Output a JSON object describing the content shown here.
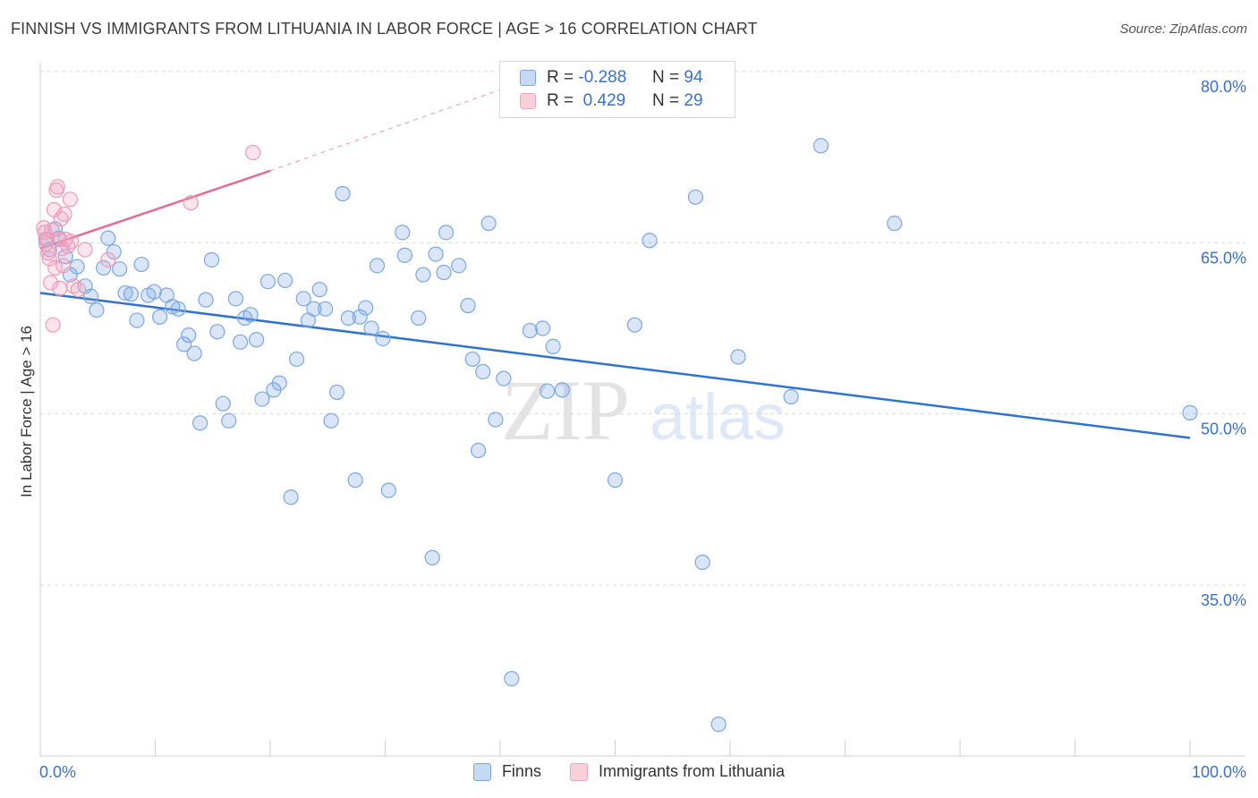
{
  "title": "FINNISH VS IMMIGRANTS FROM LITHUANIA IN LABOR FORCE | AGE > 16 CORRELATION CHART",
  "source": "Source: ZipAtlas.com",
  "watermark": {
    "part1": "ZIP",
    "part2": "atlas"
  },
  "legend": {
    "finns": {
      "r_label": "R =",
      "r_value": "-0.288",
      "n_label": "N =",
      "n_value": "94"
    },
    "lithuania": {
      "r_label": "R =",
      "r_value": "0.429",
      "n_label": "N =",
      "n_value": "29"
    }
  },
  "colors": {
    "finns": "#7aa7e3",
    "finns_line": "#2f72d0",
    "lithuania": "#f0a3bd",
    "lithuania_line": "#e56b95",
    "axis_text": "#3a72c8"
  },
  "chart_data": {
    "type": "scatter",
    "title": "FINNISH VS IMMIGRANTS FROM LITHUANIA IN LABOR FORCE | AGE > 16 CORRELATION CHART",
    "xlabel": "",
    "ylabel": "In Labor Force | Age > 16",
    "xlim": [
      0,
      100
    ],
    "ylim": [
      20,
      84
    ],
    "x_tick_labels": [
      "0.0%",
      "100.0%"
    ],
    "y_ticks": [
      35,
      50,
      65,
      80
    ],
    "y_tick_labels": [
      "35.0%",
      "50.0%",
      "65.0%",
      "80.0%"
    ],
    "grid": "horizontal-dashed",
    "legend_position": "top-center",
    "series": [
      {
        "name": "Finns",
        "color": "#7aa7e3",
        "trend": {
          "x": [
            0,
            100
          ],
          "y": [
            60.6,
            47.9
          ]
        },
        "points": [
          [
            0.5,
            65.3
          ],
          [
            0.8,
            64.4
          ],
          [
            1.3,
            66.2
          ],
          [
            1.6,
            65.4
          ],
          [
            2.2,
            63.8
          ],
          [
            2.6,
            62.2
          ],
          [
            3.2,
            62.9
          ],
          [
            3.9,
            61.2
          ],
          [
            4.4,
            60.3
          ],
          [
            4.9,
            59.1
          ],
          [
            5.5,
            62.8
          ],
          [
            5.9,
            65.4
          ],
          [
            6.4,
            64.2
          ],
          [
            6.9,
            62.7
          ],
          [
            7.4,
            60.6
          ],
          [
            7.9,
            60.5
          ],
          [
            8.4,
            58.2
          ],
          [
            8.8,
            63.1
          ],
          [
            9.4,
            60.4
          ],
          [
            9.9,
            60.7
          ],
          [
            10.4,
            58.5
          ],
          [
            11.0,
            60.4
          ],
          [
            11.5,
            59.4
          ],
          [
            12.0,
            59.2
          ],
          [
            12.5,
            56.1
          ],
          [
            12.9,
            56.9
          ],
          [
            13.4,
            55.3
          ],
          [
            13.9,
            49.2
          ],
          [
            14.4,
            60.0
          ],
          [
            14.9,
            63.5
          ],
          [
            15.4,
            57.2
          ],
          [
            15.9,
            50.9
          ],
          [
            16.4,
            49.4
          ],
          [
            17.0,
            60.1
          ],
          [
            17.4,
            56.3
          ],
          [
            17.8,
            58.4
          ],
          [
            18.3,
            58.7
          ],
          [
            18.8,
            56.5
          ],
          [
            19.3,
            51.3
          ],
          [
            19.8,
            61.6
          ],
          [
            20.3,
            52.1
          ],
          [
            20.8,
            52.7
          ],
          [
            21.3,
            61.7
          ],
          [
            21.8,
            42.7
          ],
          [
            22.3,
            54.8
          ],
          [
            22.9,
            60.1
          ],
          [
            23.3,
            58.2
          ],
          [
            23.8,
            59.2
          ],
          [
            24.3,
            60.9
          ],
          [
            24.8,
            59.2
          ],
          [
            25.3,
            49.4
          ],
          [
            25.8,
            51.9
          ],
          [
            26.3,
            69.3
          ],
          [
            26.8,
            58.4
          ],
          [
            27.4,
            44.2
          ],
          [
            27.8,
            58.5
          ],
          [
            28.3,
            59.3
          ],
          [
            28.8,
            57.5
          ],
          [
            29.3,
            63.0
          ],
          [
            29.8,
            56.6
          ],
          [
            30.3,
            43.3
          ],
          [
            31.5,
            65.9
          ],
          [
            31.7,
            63.9
          ],
          [
            32.9,
            58.4
          ],
          [
            33.3,
            62.2
          ],
          [
            34.1,
            37.4
          ],
          [
            34.4,
            64.0
          ],
          [
            35.1,
            62.4
          ],
          [
            35.3,
            65.9
          ],
          [
            36.4,
            63.0
          ],
          [
            37.2,
            59.5
          ],
          [
            37.6,
            54.8
          ],
          [
            38.1,
            46.8
          ],
          [
            38.5,
            53.7
          ],
          [
            39.0,
            66.7
          ],
          [
            39.6,
            49.5
          ],
          [
            40.3,
            53.1
          ],
          [
            41.0,
            26.8
          ],
          [
            42.6,
            57.3
          ],
          [
            43.7,
            57.5
          ],
          [
            44.1,
            52.0
          ],
          [
            44.6,
            55.9
          ],
          [
            45.4,
            52.1
          ],
          [
            50.0,
            44.2
          ],
          [
            51.7,
            57.8
          ],
          [
            53.0,
            65.2
          ],
          [
            57.0,
            69.0
          ],
          [
            57.6,
            37.0
          ],
          [
            59.0,
            22.8
          ],
          [
            60.7,
            55.0
          ],
          [
            65.3,
            51.5
          ],
          [
            67.9,
            73.5
          ],
          [
            74.3,
            66.7
          ],
          [
            100,
            50.1
          ]
        ]
      },
      {
        "name": "Immigrants from Lithuania",
        "color": "#f0a3bd",
        "trend": {
          "x": [
            0,
            20
          ],
          "y": [
            64.5,
            71.3
          ],
          "extended": {
            "x": [
              20,
              40
            ],
            "y": [
              71.3,
              78.4
            ]
          }
        },
        "points": [
          [
            0.3,
            66.3
          ],
          [
            0.4,
            65.9
          ],
          [
            0.5,
            64.9
          ],
          [
            0.6,
            65.3
          ],
          [
            0.7,
            64.1
          ],
          [
            0.8,
            63.6
          ],
          [
            0.9,
            61.5
          ],
          [
            1.0,
            66.1
          ],
          [
            1.1,
            57.8
          ],
          [
            1.2,
            67.9
          ],
          [
            1.3,
            62.8
          ],
          [
            1.4,
            69.6
          ],
          [
            1.5,
            69.9
          ],
          [
            1.6,
            65.3
          ],
          [
            1.7,
            61.0
          ],
          [
            1.8,
            67.1
          ],
          [
            1.9,
            64.5
          ],
          [
            2.0,
            63.0
          ],
          [
            2.1,
            67.5
          ],
          [
            2.2,
            65.3
          ],
          [
            2.4,
            64.7
          ],
          [
            2.6,
            68.8
          ],
          [
            2.7,
            65.1
          ],
          [
            2.9,
            61.2
          ],
          [
            3.3,
            60.9
          ],
          [
            3.9,
            64.4
          ],
          [
            5.9,
            63.5
          ],
          [
            13.1,
            68.5
          ],
          [
            18.5,
            72.9
          ]
        ]
      }
    ]
  },
  "bottom_legend": {
    "finns": "Finns",
    "lithuania": "Immigrants from Lithuania"
  }
}
